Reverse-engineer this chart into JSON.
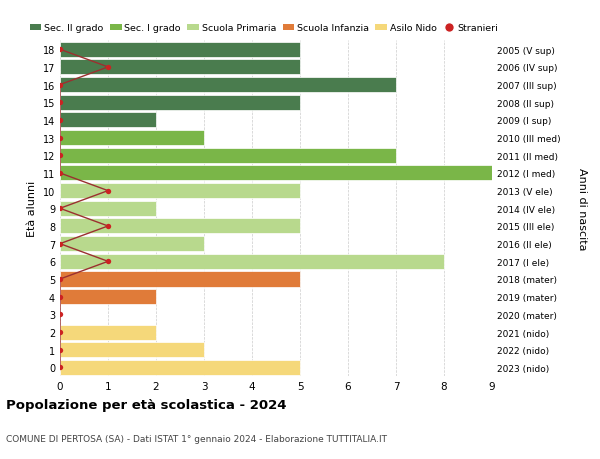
{
  "ages": [
    18,
    17,
    16,
    15,
    14,
    13,
    12,
    11,
    10,
    9,
    8,
    7,
    6,
    5,
    4,
    3,
    2,
    1,
    0
  ],
  "right_labels": [
    "2005 (V sup)",
    "2006 (IV sup)",
    "2007 (III sup)",
    "2008 (II sup)",
    "2009 (I sup)",
    "2010 (III med)",
    "2011 (II med)",
    "2012 (I med)",
    "2013 (V ele)",
    "2014 (IV ele)",
    "2015 (III ele)",
    "2016 (II ele)",
    "2017 (I ele)",
    "2018 (mater)",
    "2019 (mater)",
    "2020 (mater)",
    "2021 (nido)",
    "2022 (nido)",
    "2023 (nido)"
  ],
  "bar_values": [
    5,
    5,
    7,
    5,
    2,
    3,
    7,
    9,
    5,
    2,
    5,
    3,
    8,
    5,
    2,
    0,
    2,
    3,
    5
  ],
  "bar_colors": [
    "#4a7c4e",
    "#4a7c4e",
    "#4a7c4e",
    "#4a7c4e",
    "#4a7c4e",
    "#7ab648",
    "#7ab648",
    "#7ab648",
    "#b8d98d",
    "#b8d98d",
    "#b8d98d",
    "#b8d98d",
    "#b8d98d",
    "#e07b39",
    "#e07b39",
    "#e07b39",
    "#f5d87a",
    "#f5d87a",
    "#f5d87a"
  ],
  "stranieri_values": [
    0,
    1,
    0,
    0,
    0,
    0,
    0,
    0,
    1,
    0,
    1,
    0,
    1,
    0,
    0,
    0,
    0,
    0,
    0
  ],
  "legend_labels": [
    "Sec. II grado",
    "Sec. I grado",
    "Scuola Primaria",
    "Scuola Infanzia",
    "Asilo Nido",
    "Stranieri"
  ],
  "legend_colors": [
    "#4a7c4e",
    "#7ab648",
    "#b8d98d",
    "#e07b39",
    "#f5d87a",
    "#cc2222"
  ],
  "title": "Popolazione per età scolastica - 2024",
  "subtitle": "COMUNE DI PERTOSA (SA) - Dati ISTAT 1° gennaio 2024 - Elaborazione TUTTITALIA.IT",
  "ylabel_left": "Età alunni",
  "ylabel_right": "Anni di nascita",
  "xlim": [
    0,
    9
  ],
  "ylim": [
    -0.5,
    18.5
  ],
  "bar_height": 0.85,
  "stranieri_color": "#cc2222",
  "stranieri_line_color": "#9b3030",
  "background_color": "#ffffff",
  "grid_color": "#cccccc"
}
